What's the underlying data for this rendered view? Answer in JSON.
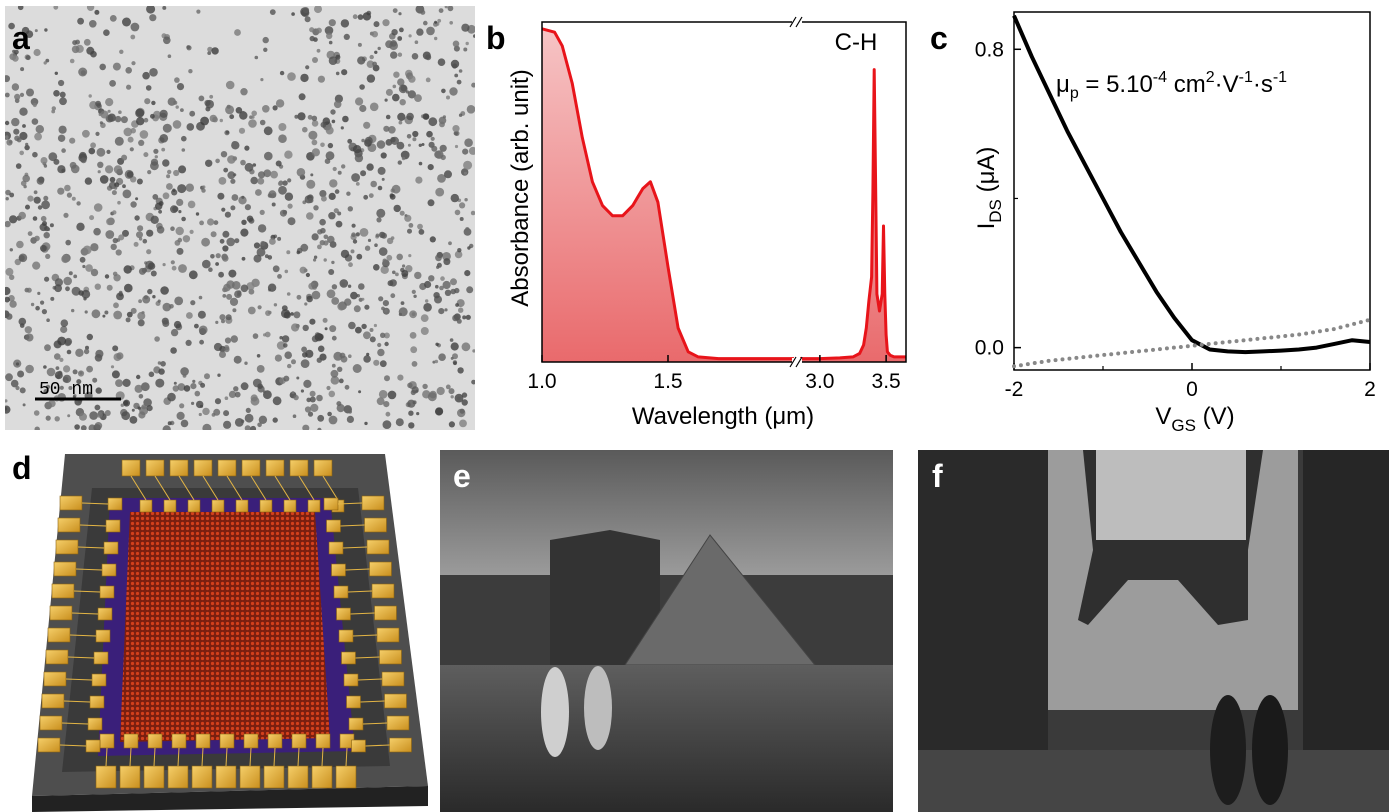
{
  "panels": {
    "a": {
      "label": "a",
      "scalebar": "50 nm"
    },
    "b": {
      "label": "b",
      "annotation": "C-H"
    },
    "c": {
      "label": "c",
      "mobility": {
        "mu": "μ",
        "sub": "p",
        "eq": " = 5.10",
        "exp": "-4",
        "unit1": " cm",
        "sup1": "2",
        "unit2": "·V",
        "sup2": "-1",
        "unit3": "·s",
        "sup3": "-1"
      }
    },
    "d": {
      "label": "d"
    },
    "e": {
      "label": "e"
    },
    "f": {
      "label": "f"
    }
  },
  "chart_data": [
    {
      "type": "area",
      "panel": "b",
      "ylabel": "Absorbance (arb. unit)",
      "xlabel": "Wavelength (μm)",
      "x_axis_broken": true,
      "xticks_left": [
        "1.0",
        "1.5"
      ],
      "xticks_right": [
        "3.0",
        "3.5"
      ],
      "xlim_left": [
        1.0,
        2.0
      ],
      "xlim_right": [
        2.85,
        3.65
      ],
      "ylim": [
        0,
        1
      ],
      "color": "#e8141a",
      "series": [
        {
          "x": [
            1.0,
            1.05,
            1.08,
            1.12,
            1.16,
            1.2,
            1.24,
            1.28,
            1.32,
            1.36,
            1.4,
            1.43,
            1.46,
            1.5,
            1.54,
            1.58,
            1.62,
            1.7,
            1.8,
            1.9,
            2.0
          ],
          "y": [
            0.98,
            0.97,
            0.93,
            0.82,
            0.66,
            0.53,
            0.46,
            0.43,
            0.43,
            0.46,
            0.51,
            0.53,
            0.47,
            0.28,
            0.1,
            0.03,
            0.015,
            0.01,
            0.01,
            0.01,
            0.01
          ]
        },
        {
          "x": [
            2.85,
            3.0,
            3.15,
            3.25,
            3.3,
            3.33,
            3.35,
            3.37,
            3.39,
            3.4,
            3.41,
            3.42,
            3.43,
            3.45,
            3.47,
            3.48,
            3.49,
            3.5,
            3.51,
            3.53,
            3.56,
            3.6,
            3.65
          ],
          "y": [
            0.01,
            0.01,
            0.012,
            0.015,
            0.025,
            0.05,
            0.1,
            0.18,
            0.25,
            0.5,
            0.86,
            0.55,
            0.2,
            0.15,
            0.2,
            0.4,
            0.2,
            0.08,
            0.03,
            0.02,
            0.015,
            0.015,
            0.015
          ]
        }
      ]
    },
    {
      "type": "line",
      "panel": "c",
      "xlabel": {
        "main": "V",
        "sub": "GS",
        "rest": " (V)"
      },
      "ylabel": {
        "main": "I",
        "sub": "DS",
        "rest": " (μA)"
      },
      "xlim": [
        -2,
        2
      ],
      "ylim": [
        -0.06,
        0.9
      ],
      "xticks": [
        "-2",
        "0",
        "2"
      ],
      "yticks": [
        "0.0",
        "0.8"
      ],
      "series": [
        {
          "style": "solid",
          "color": "#000000",
          "x": [
            -2.0,
            -1.8,
            -1.6,
            -1.4,
            -1.2,
            -1.0,
            -0.8,
            -0.6,
            -0.4,
            -0.2,
            0.0,
            0.2,
            0.4,
            0.6,
            0.8,
            1.0,
            1.2,
            1.4,
            1.6,
            1.8,
            2.0
          ],
          "y": [
            0.89,
            0.78,
            0.68,
            0.58,
            0.49,
            0.4,
            0.31,
            0.23,
            0.15,
            0.08,
            0.02,
            -0.005,
            -0.01,
            -0.012,
            -0.01,
            -0.008,
            -0.005,
            0.0,
            0.01,
            0.02,
            0.015
          ]
        },
        {
          "style": "dotted",
          "color": "#888888",
          "x": [
            -2.0,
            -1.6,
            -1.2,
            -0.8,
            -0.4,
            0.0,
            0.4,
            0.8,
            1.2,
            1.6,
            2.0
          ],
          "y": [
            -0.05,
            -0.035,
            -0.025,
            -0.015,
            -0.005,
            0.005,
            0.015,
            0.025,
            0.035,
            0.05,
            0.075
          ]
        }
      ]
    }
  ]
}
